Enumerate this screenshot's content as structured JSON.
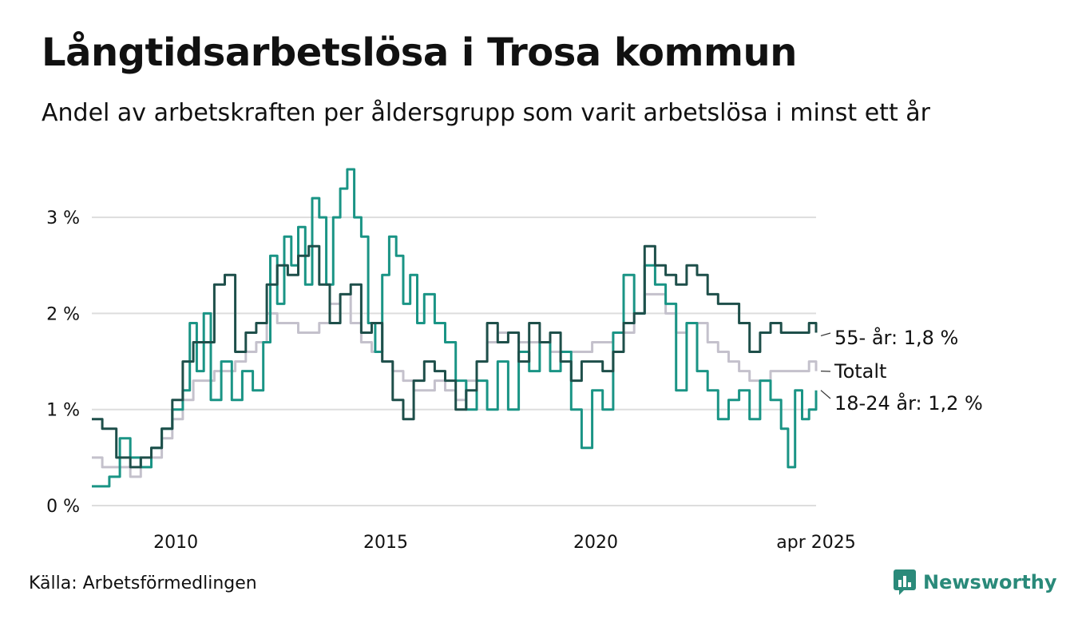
{
  "header": {
    "title": "Långtidsarbetslösa i Trosa kommun",
    "subtitle": "Andel av arbetskraften per åldersgrupp som varit arbetslösa i minst ett år"
  },
  "footer": {
    "source": "Källa: Arbetsförmedlingen",
    "brand": "Newsworthy"
  },
  "colors": {
    "age55": "#1e4f4a",
    "age1824": "#1a9485",
    "total": "#c4c1cc",
    "grid": "#dddddd",
    "brand": "#2a8a7a"
  },
  "chart_data": {
    "type": "line",
    "title": "Långtidsarbetslösa i Trosa kommun",
    "subtitle": "Andel av arbetskraften per åldersgrupp som varit arbetslösa i minst ett år",
    "x_range": [
      "2008-01",
      "2025-04"
    ],
    "ylim": [
      0,
      3.5
    ],
    "y_ticks": [
      0,
      1,
      2,
      3
    ],
    "y_tick_labels": [
      "0 %",
      "1 %",
      "2 %",
      "3 %"
    ],
    "x_ticks": [
      2010,
      2015,
      2020,
      2025.25
    ],
    "x_tick_labels": [
      "2010",
      "2015",
      "2020",
      "apr 2025"
    ],
    "grid": true,
    "legend": "direct labels at line ends",
    "series": [
      {
        "name": "Totalt",
        "key": "total",
        "end_label": "Totalt",
        "points": [
          [
            "2008-01",
            0.5
          ],
          [
            "2008-04",
            0.4
          ],
          [
            "2008-08",
            0.4
          ],
          [
            "2008-12",
            0.3
          ],
          [
            "2009-03",
            0.4
          ],
          [
            "2009-06",
            0.5
          ],
          [
            "2009-09",
            0.7
          ],
          [
            "2009-12",
            0.9
          ],
          [
            "2010-03",
            1.1
          ],
          [
            "2010-06",
            1.3
          ],
          [
            "2010-09",
            1.3
          ],
          [
            "2010-12",
            1.4
          ],
          [
            "2011-03",
            1.4
          ],
          [
            "2011-06",
            1.5
          ],
          [
            "2011-09",
            1.6
          ],
          [
            "2011-12",
            1.7
          ],
          [
            "2012-03",
            2.0
          ],
          [
            "2012-06",
            1.9
          ],
          [
            "2012-09",
            1.9
          ],
          [
            "2012-12",
            1.8
          ],
          [
            "2013-03",
            1.8
          ],
          [
            "2013-06",
            1.9
          ],
          [
            "2013-09",
            2.1
          ],
          [
            "2013-12",
            2.2
          ],
          [
            "2014-03",
            1.9
          ],
          [
            "2014-06",
            1.7
          ],
          [
            "2014-09",
            1.6
          ],
          [
            "2014-12",
            1.5
          ],
          [
            "2015-03",
            1.4
          ],
          [
            "2015-06",
            1.3
          ],
          [
            "2015-09",
            1.2
          ],
          [
            "2015-12",
            1.2
          ],
          [
            "2016-03",
            1.3
          ],
          [
            "2016-06",
            1.2
          ],
          [
            "2016-09",
            1.1
          ],
          [
            "2016-12",
            1.3
          ],
          [
            "2017-03",
            1.5
          ],
          [
            "2017-06",
            1.7
          ],
          [
            "2017-09",
            1.8
          ],
          [
            "2017-12",
            1.8
          ],
          [
            "2018-03",
            1.7
          ],
          [
            "2018-06",
            1.7
          ],
          [
            "2018-09",
            1.7
          ],
          [
            "2018-12",
            1.6
          ],
          [
            "2019-03",
            1.6
          ],
          [
            "2019-06",
            1.6
          ],
          [
            "2019-09",
            1.6
          ],
          [
            "2019-12",
            1.7
          ],
          [
            "2020-03",
            1.7
          ],
          [
            "2020-06",
            1.8
          ],
          [
            "2020-09",
            1.8
          ],
          [
            "2020-12",
            2.0
          ],
          [
            "2021-03",
            2.2
          ],
          [
            "2021-06",
            2.2
          ],
          [
            "2021-09",
            2.0
          ],
          [
            "2021-12",
            1.8
          ],
          [
            "2022-03",
            1.9
          ],
          [
            "2022-06",
            1.9
          ],
          [
            "2022-09",
            1.7
          ],
          [
            "2022-12",
            1.6
          ],
          [
            "2023-03",
            1.5
          ],
          [
            "2023-06",
            1.4
          ],
          [
            "2023-09",
            1.3
          ],
          [
            "2023-12",
            1.3
          ],
          [
            "2024-03",
            1.4
          ],
          [
            "2024-06",
            1.4
          ],
          [
            "2024-09",
            1.4
          ],
          [
            "2024-12",
            1.4
          ],
          [
            "2025-02",
            1.5
          ],
          [
            "2025-04",
            1.4
          ]
        ]
      },
      {
        "name": "18-24 år",
        "key": "age1824",
        "end_label": "18-24 år: 1,2 %",
        "points": [
          [
            "2008-01",
            0.2
          ],
          [
            "2008-06",
            0.3
          ],
          [
            "2008-09",
            0.7
          ],
          [
            "2008-12",
            0.5
          ],
          [
            "2009-03",
            0.4
          ],
          [
            "2009-06",
            0.6
          ],
          [
            "2009-09",
            0.8
          ],
          [
            "2009-12",
            1.0
          ],
          [
            "2010-03",
            1.2
          ],
          [
            "2010-05",
            1.9
          ],
          [
            "2010-07",
            1.4
          ],
          [
            "2010-09",
            2.0
          ],
          [
            "2010-11",
            1.1
          ],
          [
            "2011-02",
            1.5
          ],
          [
            "2011-05",
            1.1
          ],
          [
            "2011-08",
            1.4
          ],
          [
            "2011-11",
            1.2
          ],
          [
            "2012-02",
            1.7
          ],
          [
            "2012-04",
            2.6
          ],
          [
            "2012-06",
            2.1
          ],
          [
            "2012-08",
            2.8
          ],
          [
            "2012-10",
            2.5
          ],
          [
            "2012-12",
            2.9
          ],
          [
            "2013-02",
            2.3
          ],
          [
            "2013-04",
            3.2
          ],
          [
            "2013-06",
            3.0
          ],
          [
            "2013-08",
            2.3
          ],
          [
            "2013-10",
            3.0
          ],
          [
            "2013-12",
            3.3
          ],
          [
            "2014-02",
            3.5
          ],
          [
            "2014-04",
            3.0
          ],
          [
            "2014-06",
            2.8
          ],
          [
            "2014-08",
            1.9
          ],
          [
            "2014-10",
            1.6
          ],
          [
            "2014-12",
            2.4
          ],
          [
            "2015-02",
            2.8
          ],
          [
            "2015-04",
            2.6
          ],
          [
            "2015-06",
            2.1
          ],
          [
            "2015-08",
            2.4
          ],
          [
            "2015-10",
            1.9
          ],
          [
            "2015-12",
            2.2
          ],
          [
            "2016-03",
            1.9
          ],
          [
            "2016-06",
            1.7
          ],
          [
            "2016-09",
            1.3
          ],
          [
            "2016-12",
            1.0
          ],
          [
            "2017-03",
            1.3
          ],
          [
            "2017-06",
            1.0
          ],
          [
            "2017-09",
            1.5
          ],
          [
            "2017-12",
            1.0
          ],
          [
            "2018-03",
            1.6
          ],
          [
            "2018-06",
            1.4
          ],
          [
            "2018-09",
            1.7
          ],
          [
            "2018-12",
            1.4
          ],
          [
            "2019-03",
            1.6
          ],
          [
            "2019-06",
            1.0
          ],
          [
            "2019-09",
            0.6
          ],
          [
            "2019-12",
            1.2
          ],
          [
            "2020-03",
            1.0
          ],
          [
            "2020-06",
            1.8
          ],
          [
            "2020-09",
            2.4
          ],
          [
            "2020-12",
            2.0
          ],
          [
            "2021-03",
            2.5
          ],
          [
            "2021-06",
            2.3
          ],
          [
            "2021-09",
            2.1
          ],
          [
            "2021-12",
            1.2
          ],
          [
            "2022-03",
            1.9
          ],
          [
            "2022-06",
            1.4
          ],
          [
            "2022-09",
            1.2
          ],
          [
            "2022-12",
            0.9
          ],
          [
            "2023-03",
            1.1
          ],
          [
            "2023-06",
            1.2
          ],
          [
            "2023-09",
            0.9
          ],
          [
            "2023-12",
            1.3
          ],
          [
            "2024-03",
            1.1
          ],
          [
            "2024-06",
            0.8
          ],
          [
            "2024-08",
            0.4
          ],
          [
            "2024-10",
            1.2
          ],
          [
            "2024-12",
            0.9
          ],
          [
            "2025-02",
            1.0
          ],
          [
            "2025-04",
            1.2
          ]
        ]
      },
      {
        "name": "55- år",
        "key": "age55",
        "end_label": "55- år: 1,8 %",
        "points": [
          [
            "2008-01",
            0.9
          ],
          [
            "2008-04",
            0.8
          ],
          [
            "2008-08",
            0.5
          ],
          [
            "2008-12",
            0.4
          ],
          [
            "2009-03",
            0.5
          ],
          [
            "2009-06",
            0.6
          ],
          [
            "2009-09",
            0.8
          ],
          [
            "2009-12",
            1.1
          ],
          [
            "2010-03",
            1.5
          ],
          [
            "2010-06",
            1.7
          ],
          [
            "2010-09",
            1.7
          ],
          [
            "2010-12",
            2.3
          ],
          [
            "2011-03",
            2.4
          ],
          [
            "2011-06",
            1.6
          ],
          [
            "2011-09",
            1.8
          ],
          [
            "2011-12",
            1.9
          ],
          [
            "2012-03",
            2.3
          ],
          [
            "2012-06",
            2.5
          ],
          [
            "2012-09",
            2.4
          ],
          [
            "2012-12",
            2.6
          ],
          [
            "2013-03",
            2.7
          ],
          [
            "2013-06",
            2.3
          ],
          [
            "2013-09",
            1.9
          ],
          [
            "2013-12",
            2.2
          ],
          [
            "2014-03",
            2.3
          ],
          [
            "2014-06",
            1.8
          ],
          [
            "2014-09",
            1.9
          ],
          [
            "2014-12",
            1.5
          ],
          [
            "2015-03",
            1.1
          ],
          [
            "2015-06",
            0.9
          ],
          [
            "2015-09",
            1.3
          ],
          [
            "2015-12",
            1.5
          ],
          [
            "2016-03",
            1.4
          ],
          [
            "2016-06",
            1.3
          ],
          [
            "2016-09",
            1.0
          ],
          [
            "2016-12",
            1.2
          ],
          [
            "2017-03",
            1.5
          ],
          [
            "2017-06",
            1.9
          ],
          [
            "2017-09",
            1.7
          ],
          [
            "2017-12",
            1.8
          ],
          [
            "2018-03",
            1.5
          ],
          [
            "2018-06",
            1.9
          ],
          [
            "2018-09",
            1.7
          ],
          [
            "2018-12",
            1.8
          ],
          [
            "2019-03",
            1.5
          ],
          [
            "2019-06",
            1.3
          ],
          [
            "2019-09",
            1.5
          ],
          [
            "2019-12",
            1.5
          ],
          [
            "2020-03",
            1.4
          ],
          [
            "2020-06",
            1.6
          ],
          [
            "2020-09",
            1.9
          ],
          [
            "2020-12",
            2.0
          ],
          [
            "2021-03",
            2.7
          ],
          [
            "2021-06",
            2.5
          ],
          [
            "2021-09",
            2.4
          ],
          [
            "2021-12",
            2.3
          ],
          [
            "2022-03",
            2.5
          ],
          [
            "2022-06",
            2.4
          ],
          [
            "2022-09",
            2.2
          ],
          [
            "2022-12",
            2.1
          ],
          [
            "2023-03",
            2.1
          ],
          [
            "2023-06",
            1.9
          ],
          [
            "2023-09",
            1.6
          ],
          [
            "2023-12",
            1.8
          ],
          [
            "2024-03",
            1.9
          ],
          [
            "2024-06",
            1.8
          ],
          [
            "2024-09",
            1.8
          ],
          [
            "2024-12",
            1.8
          ],
          [
            "2025-02",
            1.9
          ],
          [
            "2025-04",
            1.8
          ]
        ]
      }
    ]
  }
}
